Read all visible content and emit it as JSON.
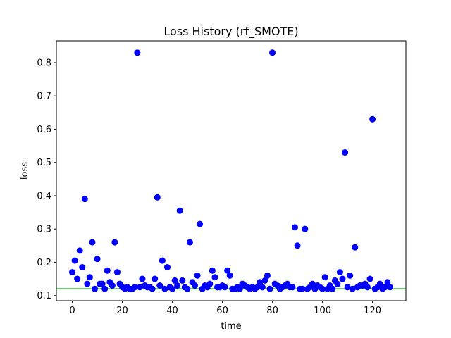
{
  "chart_data": {
    "type": "scatter",
    "title": "Loss History (rf_SMOTE)",
    "xlabel": "time",
    "ylabel": "loss",
    "xlim": [
      -6.35,
      133.35
    ],
    "ylim": [
      0.0845,
      0.8655
    ],
    "xticks": [
      0,
      20,
      40,
      60,
      80,
      100,
      120
    ],
    "yticks": [
      0.1,
      0.2,
      0.3,
      0.4,
      0.5,
      0.6,
      0.7,
      0.8
    ],
    "grid": false,
    "point_color": "#0000ff",
    "reference_line": {
      "y": 0.12,
      "color": "#008000"
    },
    "series": [
      {
        "x": [
          0,
          1,
          2,
          3,
          4,
          5,
          6,
          7,
          8,
          9,
          10,
          11,
          12,
          13,
          14,
          15,
          16,
          17,
          18,
          19,
          20,
          21,
          22,
          23,
          24,
          25,
          26,
          27,
          28,
          29,
          30,
          31,
          32,
          33,
          34,
          35,
          36,
          37,
          38,
          39,
          40,
          41,
          42,
          43,
          44,
          45,
          46,
          47,
          48,
          49,
          50,
          51,
          52,
          53,
          54,
          55,
          56,
          57,
          58,
          59,
          60,
          61,
          62,
          63,
          64,
          65,
          66,
          67,
          68,
          69,
          70,
          71,
          72,
          73,
          74,
          75,
          76,
          77,
          78,
          79,
          80,
          81,
          82,
          83,
          84,
          85,
          86,
          87,
          88,
          89,
          90,
          91,
          92,
          93,
          94,
          95,
          96,
          97,
          98,
          99,
          100,
          101,
          102,
          103,
          104,
          105,
          106,
          107,
          108,
          109,
          110,
          111,
          112,
          113,
          114,
          115,
          116,
          117,
          118,
          119,
          120,
          121,
          122,
          123,
          124,
          125,
          126,
          127
        ],
        "y": [
          0.17,
          0.205,
          0.15,
          0.235,
          0.185,
          0.39,
          0.135,
          0.155,
          0.26,
          0.12,
          0.21,
          0.135,
          0.135,
          0.12,
          0.175,
          0.14,
          0.13,
          0.26,
          0.17,
          0.135,
          0.125,
          0.12,
          0.125,
          0.12,
          0.12,
          0.125,
          0.83,
          0.125,
          0.15,
          0.13,
          0.125,
          0.125,
          0.12,
          0.15,
          0.395,
          0.13,
          0.205,
          0.12,
          0.185,
          0.125,
          0.12,
          0.145,
          0.13,
          0.355,
          0.145,
          0.125,
          0.12,
          0.26,
          0.14,
          0.13,
          0.16,
          0.315,
          0.12,
          0.13,
          0.125,
          0.135,
          0.175,
          0.155,
          0.125,
          0.125,
          0.13,
          0.125,
          0.175,
          0.16,
          0.12,
          0.12,
          0.125,
          0.12,
          0.135,
          0.13,
          0.125,
          0.12,
          0.125,
          0.12,
          0.125,
          0.14,
          0.125,
          0.145,
          0.16,
          0.12,
          0.83,
          0.135,
          0.13,
          0.12,
          0.125,
          0.13,
          0.135,
          0.125,
          0.125,
          0.305,
          0.25,
          0.12,
          0.12,
          0.3,
          0.12,
          0.125,
          0.135,
          0.12,
          0.13,
          0.125,
          0.12,
          0.155,
          0.12,
          0.13,
          0.12,
          0.145,
          0.135,
          0.17,
          0.15,
          0.53,
          0.125,
          0.16,
          0.12,
          0.245,
          0.125,
          0.13,
          0.13,
          0.135,
          0.125,
          0.15,
          0.63,
          0.12,
          0.125,
          0.135,
          0.12,
          0.125,
          0.14,
          0.125
        ]
      }
    ]
  }
}
